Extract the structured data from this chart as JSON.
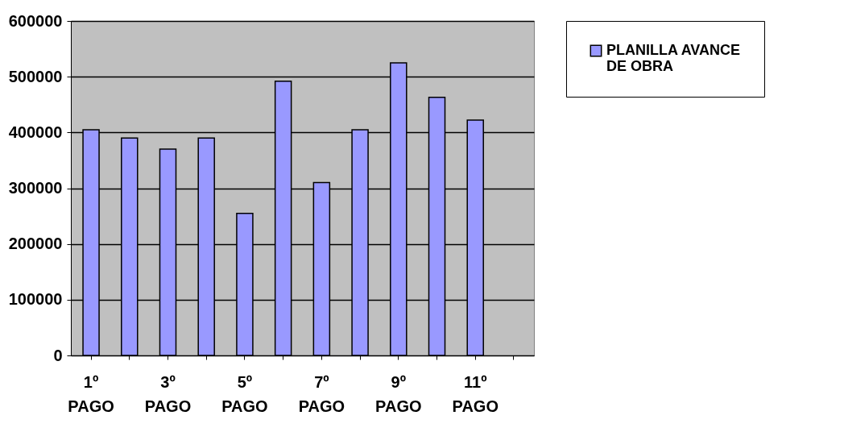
{
  "chart_data": {
    "type": "bar",
    "categories": [
      "1º PAGO",
      null,
      "3º PAGO",
      null,
      "5º PAGO",
      null,
      "7º PAGO",
      null,
      "9º PAGO",
      null,
      "11º PAGO",
      null
    ],
    "series": [
      {
        "name": "PLANILLA AVANCE DE OBRA",
        "color": "#9999ff",
        "values": [
          405000,
          390000,
          370000,
          390000,
          255000,
          492000,
          310000,
          405000,
          525000,
          463000,
          422000,
          null
        ]
      }
    ],
    "ylim": [
      0,
      600000
    ],
    "yticks": [
      0,
      100000,
      200000,
      300000,
      400000,
      500000,
      600000
    ],
    "grid": "y",
    "legend": "right"
  }
}
